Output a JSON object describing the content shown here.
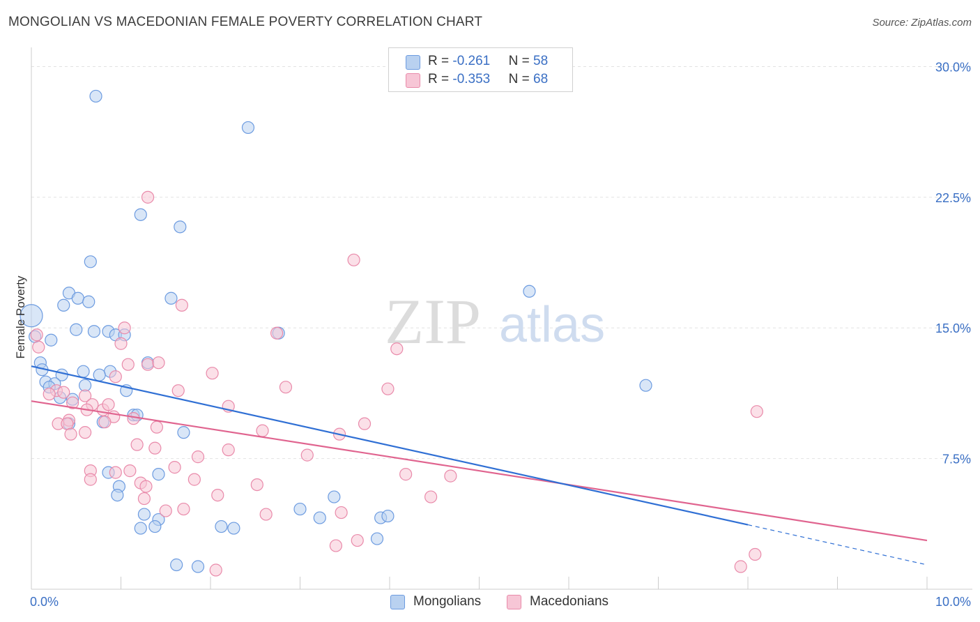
{
  "title": "MONGOLIAN VS MACEDONIAN FEMALE POVERTY CORRELATION CHART",
  "source": "Source: ZipAtlas.com",
  "watermark": {
    "zip": "ZIP",
    "atlas": "atlas"
  },
  "colors": {
    "blue_fill": "#b9d1f0",
    "blue_stroke": "#6c9be0",
    "blue_line": "#2f6fd4",
    "pink_fill": "#f7c6d6",
    "pink_stroke": "#e98aaa",
    "pink_line": "#e0648f",
    "tick_label": "#3a6fc4",
    "grid": "#e2e2e2"
  },
  "legend": {
    "rows": [
      {
        "r_label": "R = ",
        "r_value": "-0.261",
        "n_label": "N = ",
        "n_value": "58"
      },
      {
        "r_label": "R = ",
        "r_value": "-0.353",
        "n_label": "N = ",
        "n_value": "68"
      }
    ],
    "bottom": [
      "Mongolians",
      "Macedonians"
    ]
  },
  "chart_data": {
    "type": "scatter",
    "title": "MONGOLIAN VS MACEDONIAN FEMALE POVERTY CORRELATION CHART",
    "xlabel": "",
    "ylabel": "Female Poverty",
    "xlim": [
      0,
      10
    ],
    "ylim": [
      0,
      30.7
    ],
    "x_tick_labels": [
      "0.0%",
      "10.0%"
    ],
    "y_ticks": [
      7.5,
      15.0,
      22.5,
      30.0
    ],
    "y_tick_labels": [
      "7.5%",
      "15.0%",
      "22.5%",
      "30.0%"
    ],
    "grid": true,
    "legend_position": "top-center",
    "series": [
      {
        "name": "Mongolians",
        "r": -0.261,
        "n": 58,
        "trend": {
          "x": [
            0.0,
            8.0
          ],
          "y": [
            12.8,
            3.7
          ],
          "dashed_to": [
            10.0,
            1.4
          ]
        },
        "points": [
          [
            0.72,
            28.3
          ],
          [
            2.42,
            26.5
          ],
          [
            1.22,
            21.5
          ],
          [
            1.66,
            20.8
          ],
          [
            0.66,
            18.8
          ],
          [
            5.56,
            17.1
          ],
          [
            0.42,
            17.0
          ],
          [
            0.52,
            16.7
          ],
          [
            0.64,
            16.5
          ],
          [
            1.56,
            16.7
          ],
          [
            0.36,
            16.3
          ],
          [
            0.0,
            15.7
          ],
          [
            0.5,
            14.9
          ],
          [
            0.7,
            14.8
          ],
          [
            0.86,
            14.8
          ],
          [
            0.94,
            14.6
          ],
          [
            1.04,
            14.6
          ],
          [
            2.76,
            14.7
          ],
          [
            0.04,
            14.5
          ],
          [
            0.22,
            14.3
          ],
          [
            0.1,
            13.0
          ],
          [
            1.3,
            13.0
          ],
          [
            0.12,
            12.6
          ],
          [
            0.58,
            12.5
          ],
          [
            0.88,
            12.5
          ],
          [
            0.34,
            12.3
          ],
          [
            0.76,
            12.3
          ],
          [
            0.16,
            11.9
          ],
          [
            0.26,
            11.8
          ],
          [
            0.2,
            11.6
          ],
          [
            0.6,
            11.7
          ],
          [
            1.06,
            11.4
          ],
          [
            6.86,
            11.7
          ],
          [
            0.32,
            11.0
          ],
          [
            0.46,
            10.9
          ],
          [
            1.14,
            10.0
          ],
          [
            1.18,
            10.0
          ],
          [
            0.8,
            9.6
          ],
          [
            0.42,
            9.5
          ],
          [
            1.7,
            9.0
          ],
          [
            0.86,
            6.7
          ],
          [
            0.98,
            5.9
          ],
          [
            1.42,
            6.6
          ],
          [
            0.96,
            5.4
          ],
          [
            1.26,
            4.3
          ],
          [
            1.42,
            4.0
          ],
          [
            3.0,
            4.6
          ],
          [
            3.22,
            4.1
          ],
          [
            3.38,
            5.3
          ],
          [
            3.9,
            4.1
          ],
          [
            3.98,
            4.2
          ],
          [
            1.22,
            3.5
          ],
          [
            1.38,
            3.6
          ],
          [
            2.12,
            3.6
          ],
          [
            2.26,
            3.5
          ],
          [
            3.86,
            2.9
          ],
          [
            1.62,
            1.4
          ],
          [
            1.86,
            1.3
          ]
        ]
      },
      {
        "name": "Macedonians",
        "r": -0.353,
        "n": 68,
        "trend": {
          "x": [
            0.0,
            10.0
          ],
          "y": [
            10.8,
            2.8
          ]
        },
        "points": [
          [
            1.3,
            22.5
          ],
          [
            3.6,
            18.9
          ],
          [
            1.68,
            16.3
          ],
          [
            1.04,
            15.0
          ],
          [
            2.74,
            14.7
          ],
          [
            0.06,
            14.6
          ],
          [
            1.0,
            14.1
          ],
          [
            0.08,
            13.9
          ],
          [
            4.08,
            13.8
          ],
          [
            1.3,
            12.9
          ],
          [
            1.42,
            13.0
          ],
          [
            1.08,
            12.9
          ],
          [
            2.02,
            12.4
          ],
          [
            0.94,
            12.2
          ],
          [
            0.28,
            11.4
          ],
          [
            0.36,
            11.3
          ],
          [
            2.84,
            11.6
          ],
          [
            3.98,
            11.5
          ],
          [
            1.64,
            11.4
          ],
          [
            0.2,
            11.2
          ],
          [
            0.6,
            11.1
          ],
          [
            0.46,
            10.7
          ],
          [
            0.68,
            10.6
          ],
          [
            2.2,
            10.5
          ],
          [
            0.8,
            10.3
          ],
          [
            0.62,
            10.3
          ],
          [
            0.86,
            10.6
          ],
          [
            8.1,
            10.2
          ],
          [
            0.92,
            9.9
          ],
          [
            1.14,
            9.8
          ],
          [
            0.42,
            9.7
          ],
          [
            0.3,
            9.5
          ],
          [
            0.4,
            9.5
          ],
          [
            0.82,
            9.6
          ],
          [
            3.72,
            9.5
          ],
          [
            1.4,
            9.3
          ],
          [
            2.58,
            9.1
          ],
          [
            0.6,
            9.0
          ],
          [
            0.44,
            8.9
          ],
          [
            3.44,
            8.9
          ],
          [
            1.18,
            8.3
          ],
          [
            1.38,
            8.1
          ],
          [
            2.2,
            8.0
          ],
          [
            3.08,
            7.7
          ],
          [
            1.86,
            7.6
          ],
          [
            1.6,
            7.0
          ],
          [
            0.66,
            6.8
          ],
          [
            1.1,
            6.8
          ],
          [
            0.94,
            6.7
          ],
          [
            0.66,
            6.3
          ],
          [
            1.82,
            6.3
          ],
          [
            4.18,
            6.6
          ],
          [
            4.68,
            6.5
          ],
          [
            1.22,
            6.1
          ],
          [
            2.52,
            6.0
          ],
          [
            1.28,
            5.9
          ],
          [
            1.26,
            5.2
          ],
          [
            2.08,
            5.4
          ],
          [
            4.46,
            5.3
          ],
          [
            1.5,
            4.5
          ],
          [
            1.7,
            4.6
          ],
          [
            2.62,
            4.3
          ],
          [
            3.46,
            4.4
          ],
          [
            3.4,
            2.5
          ],
          [
            3.64,
            2.8
          ],
          [
            2.06,
            1.1
          ],
          [
            7.92,
            1.3
          ],
          [
            8.08,
            2.0
          ]
        ]
      }
    ]
  }
}
